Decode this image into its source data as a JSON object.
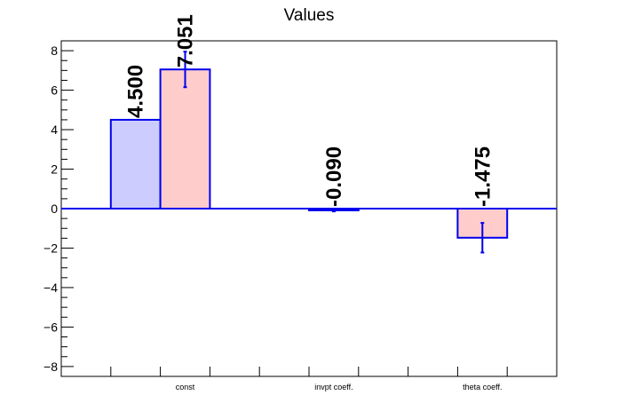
{
  "chart_data": {
    "type": "bar",
    "title": "Values",
    "categories": [
      "const",
      "invpt coeff.",
      "theta coeff."
    ],
    "ylim": [
      -8.5,
      8.5
    ],
    "yticks": [
      -8,
      -6,
      -4,
      -2,
      0,
      2,
      4,
      6,
      8
    ],
    "ytick_labels": [
      "−8",
      "−6",
      "−4",
      "−2",
      "0",
      "2",
      "4",
      "6",
      "8"
    ],
    "grid": false,
    "legend": "none",
    "series": [
      {
        "fill": "#ccccff",
        "stroke": "#0000ee",
        "values": [
          4.5,
          null,
          null
        ],
        "errors": [
          null,
          null,
          null
        ],
        "labels": [
          "4.500",
          null,
          null
        ]
      },
      {
        "fill": "#ffcccc",
        "stroke": "#0000ee",
        "values": [
          7.051,
          -0.09,
          -1.475
        ],
        "errors": [
          0.9,
          0.05,
          0.75
        ],
        "labels": [
          "7.051",
          "-0.090",
          "-1.475"
        ]
      }
    ]
  }
}
